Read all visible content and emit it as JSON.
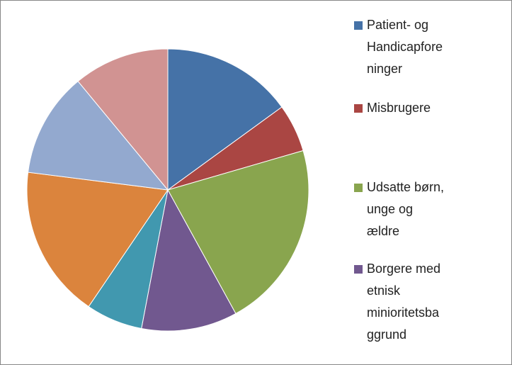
{
  "chart_data": {
    "type": "pie",
    "categories": [
      "Patient- og Handicapforeninger",
      "Misbrugere",
      "Udsatte børn, unge og ældre",
      "Borgere med etnisk minioritetsbaggrund",
      null,
      null,
      null,
      null
    ],
    "values": [
      15,
      5.5,
      21.5,
      11,
      6.5,
      17.5,
      12,
      11
    ],
    "colors": [
      "#4572a7",
      "#aa4643",
      "#89a54e",
      "#71588f",
      "#4198af",
      "#db843d",
      "#93a9cf",
      "#d19392"
    ],
    "legend": "right"
  }
}
